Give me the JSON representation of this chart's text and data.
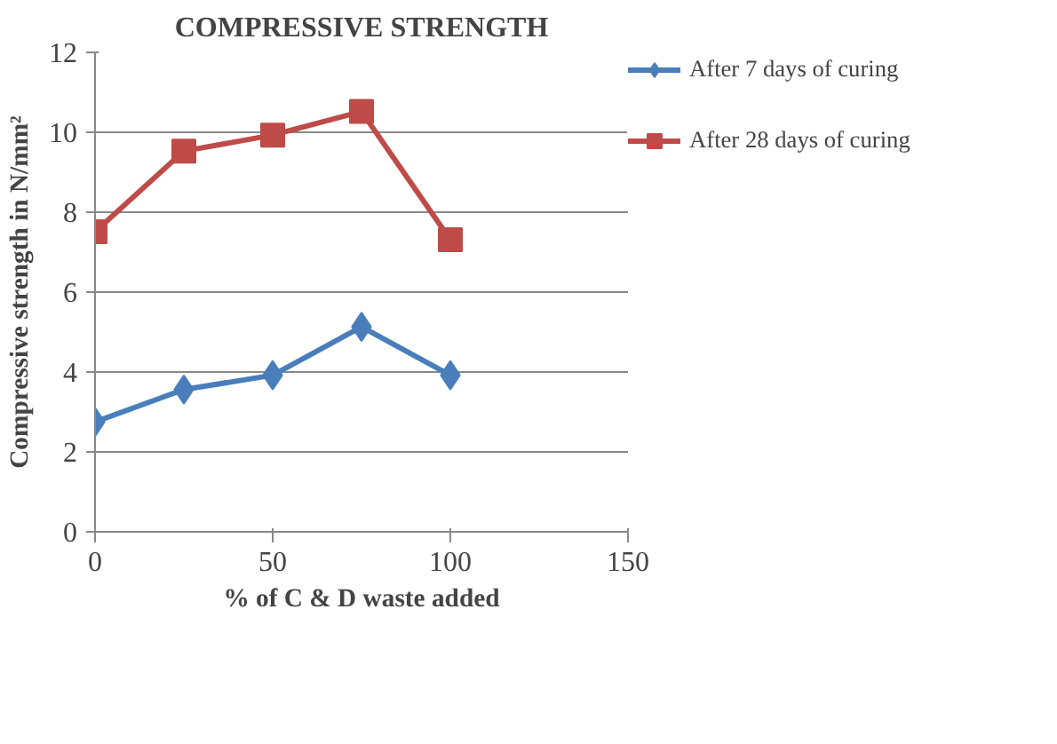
{
  "chart_data": {
    "type": "line",
    "title": "COMPRESSIVE STRENGTH",
    "xlabel": "% of C & D waste added",
    "ylabel": "Compressive strength in N/mm²",
    "x": [
      0,
      25,
      50,
      75,
      100
    ],
    "series": [
      {
        "name": "After 7 days of curing",
        "color": "#4a7ebb",
        "marker": "diamond",
        "values": [
          2.75,
          3.56,
          3.92,
          5.13,
          3.92
        ]
      },
      {
        "name": "After 28 days of curing",
        "color": "#be4b48",
        "marker": "square",
        "values": [
          7.51,
          9.53,
          9.93,
          10.52,
          7.31
        ]
      }
    ],
    "xlim": [
      0,
      150
    ],
    "xticks": [
      0,
      50,
      100,
      150
    ],
    "ylim": [
      0,
      12
    ],
    "yticks": [
      0,
      2,
      4,
      6,
      8,
      10,
      12
    ],
    "grid": "y",
    "legend": "right",
    "line_style": "solid"
  }
}
